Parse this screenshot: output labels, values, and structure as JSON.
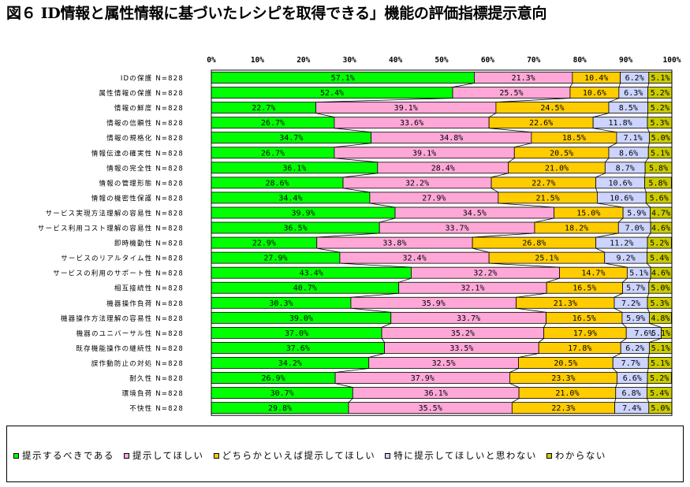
{
  "title": "図６ ID情報と属性情報に基づいたレシピを取得できる」機能の評価指標提示意向",
  "chart_data": {
    "type": "bar",
    "orientation": "horizontal",
    "stacked": true,
    "percent": true,
    "xlim": [
      0,
      100
    ],
    "xticks": [
      "0%",
      "10%",
      "20%",
      "30%",
      "40%",
      "50%",
      "60%",
      "70%",
      "80%",
      "90%",
      "100%"
    ],
    "categories": [
      "IDの保護 N=828",
      "属性情報の保護 N=828",
      "情報の鮮度 N=828",
      "情報の信頼性 N=828",
      "情報の規格化 N=828",
      "情報伝達の確実性 N=828",
      "情報の完全性 N=828",
      "情報の管理形態 N=828",
      "情報の機密性保護 N=828",
      "サービス実現方法理解の容易性 N=828",
      "サービス利用コスト理解の容易性 N=828",
      "即時機動性 N=828",
      "サービスのリアルタイム性 N=828",
      "サービスの利用のサポート性 N=828",
      "相互接続性 N=828",
      "機器操作負荷 N=828",
      "機器操作方法理解の容易性 N=828",
      "機器のユニバーサル性 N=828",
      "既存機能操作の継続性 N=828",
      "誤作動防止の対処 N=828",
      "耐久性 N=828",
      "環境負荷 N=828",
      "不快性 N=828"
    ],
    "series": [
      {
        "name": "提示するべきである",
        "color": "#00ff00",
        "values": [
          57.1,
          52.4,
          22.7,
          26.7,
          34.7,
          26.7,
          36.1,
          28.6,
          34.4,
          39.9,
          36.5,
          22.9,
          27.9,
          43.4,
          40.7,
          30.3,
          39.0,
          37.0,
          37.6,
          34.2,
          26.9,
          30.7,
          29.8
        ]
      },
      {
        "name": "提示してほしい",
        "color": "#ffa8d8",
        "values": [
          21.3,
          25.5,
          39.1,
          33.6,
          34.8,
          39.1,
          28.4,
          32.2,
          27.9,
          34.5,
          33.7,
          33.8,
          32.4,
          32.2,
          32.1,
          35.9,
          33.7,
          35.2,
          33.5,
          32.5,
          37.9,
          36.1,
          35.5
        ]
      },
      {
        "name": "どちらかといえば提示してほしい",
        "color": "#ffcc00",
        "values": [
          10.4,
          10.6,
          24.5,
          22.6,
          18.5,
          20.5,
          21.0,
          22.7,
          21.5,
          15.0,
          18.2,
          26.8,
          25.1,
          14.7,
          16.5,
          21.3,
          16.5,
          17.9,
          17.8,
          20.5,
          23.3,
          21.0,
          22.3
        ]
      },
      {
        "name": "特に提示してほしいと思わない",
        "color": "#ccd4ff",
        "values": [
          6.2,
          6.3,
          8.5,
          11.8,
          7.1,
          8.6,
          8.7,
          10.6,
          10.6,
          5.9,
          7.0,
          11.2,
          9.2,
          5.1,
          5.7,
          7.2,
          5.9,
          7.6,
          6.2,
          7.7,
          6.6,
          6.8,
          7.4
        ]
      },
      {
        "name": "わからない",
        "color": "#cccc00",
        "values": [
          5.1,
          5.2,
          5.2,
          5.3,
          5.0,
          5.1,
          5.8,
          5.8,
          5.6,
          4.7,
          4.6,
          5.2,
          5.4,
          4.6,
          5.0,
          5.3,
          4.8,
          5.1,
          5.1,
          5.1,
          5.2,
          5.4,
          5.0
        ]
      }
    ],
    "data_label_format": "{v}%",
    "grid": false,
    "series_lines": true,
    "legend_position": "bottom"
  }
}
